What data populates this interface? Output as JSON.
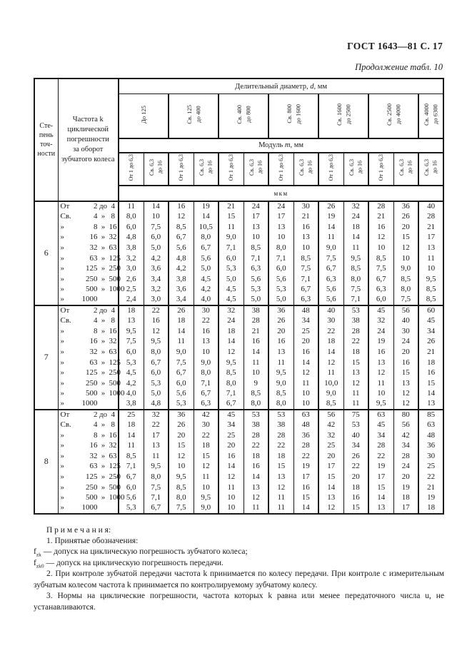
{
  "header": {
    "doc_ref": "ГОСТ 1643—81 С. 17",
    "continuation": "Продолжение табл. 10"
  },
  "table": {
    "degree_header": "Сте-\nпень\nточ-\nности",
    "frequency_header": "Частота k\nциклической\nпогрешности\nза оборот\nзубчатого колеса",
    "diameter_header": {
      "pre": "Делительный диаметр, ",
      "var": "d",
      "post": ", мм"
    },
    "module_header": {
      "pre": "Модуль ",
      "var": "m",
      "post": ", мм"
    },
    "unit_label": "мкм",
    "diameter_cols": [
      "До 125",
      "Св. 125\nдо 400",
      "Св. 400\nдо 800",
      "Св. 800\nдо 1600",
      "Св. 1600\nдо 2500",
      "Св. 2500\nдо 4000",
      "Св. 4000\nдо 6300"
    ],
    "module_cols": [
      "От 1 до 6,3",
      "Св. 6,3\nдо 16",
      "От 1 до 6,3",
      "Св. 6,3\nдо 16",
      "От 1 до 6,3",
      "Св. 6,3\nдо 16",
      "От 1 до 6,3",
      "Св. 6,3\nдо 16",
      "От 1 до 6,3",
      "Св. 6,3\nдо 16",
      "От 1 до 6,3",
      "Св. 6,3\nдо 16",
      "Св. 6,3\nдо 16"
    ],
    "row_labels": [
      [
        "От",
        "2",
        "до",
        "4"
      ],
      [
        "Св.",
        "4",
        "»",
        "8"
      ],
      [
        "»",
        "8",
        "»",
        "16"
      ],
      [
        "»",
        "16",
        "»",
        "32"
      ],
      [
        "»",
        "32",
        "»",
        "63"
      ],
      [
        "»",
        "63",
        "»",
        "125"
      ],
      [
        "»",
        "125",
        "»",
        "250"
      ],
      [
        "»",
        "250",
        "»",
        "500"
      ],
      [
        "»",
        "500",
        "»",
        "1000"
      ],
      [
        "»",
        "1000",
        "",
        ""
      ]
    ],
    "blocks": [
      {
        "degree": "6",
        "rows": [
          [
            "11",
            "14",
            "16",
            "19",
            "21",
            "24",
            "24",
            "30",
            "26",
            "32",
            "28",
            "36",
            "40"
          ],
          [
            "8,0",
            "10",
            "12",
            "14",
            "15",
            "17",
            "17",
            "21",
            "19",
            "24",
            "21",
            "26",
            "28"
          ],
          [
            "6,0",
            "7,5",
            "8,5",
            "10,5",
            "11",
            "13",
            "13",
            "16",
            "14",
            "18",
            "16",
            "20",
            "21"
          ],
          [
            "4,8",
            "6,0",
            "6,7",
            "8,0",
            "9,0",
            "10",
            "10",
            "13",
            "11",
            "14",
            "12",
            "15",
            "17"
          ],
          [
            "3,8",
            "5,0",
            "5,6",
            "6,7",
            "7,1",
            "8,5",
            "8,0",
            "10",
            "9,0",
            "11",
            "10",
            "12",
            "13"
          ],
          [
            "3,2",
            "4,2",
            "4,8",
            "5,6",
            "6,0",
            "7,1",
            "7,1",
            "8,5",
            "7,5",
            "9,5",
            "8,5",
            "10",
            "11"
          ],
          [
            "3,0",
            "3,6",
            "4,2",
            "5,0",
            "5,3",
            "6,3",
            "6,0",
            "7,5",
            "6,7",
            "8,5",
            "7,5",
            "9,0",
            "10"
          ],
          [
            "2,6",
            "3,4",
            "3,8",
            "4,5",
            "5,0",
            "5,6",
            "5,6",
            "7,1",
            "6,3",
            "8,0",
            "6,7",
            "8,5",
            "9,5"
          ],
          [
            "2,5",
            "3,2",
            "3,6",
            "4,2",
            "4,5",
            "5,3",
            "5,3",
            "6,7",
            "5,6",
            "7,5",
            "6,3",
            "8,0",
            "8,5"
          ],
          [
            "2,4",
            "3,0",
            "3,4",
            "4,0",
            "4,5",
            "5,0",
            "5,0",
            "6,3",
            "5,6",
            "7,1",
            "6,0",
            "7,5",
            "8,5"
          ]
        ]
      },
      {
        "degree": "7",
        "rows": [
          [
            "18",
            "22",
            "26",
            "30",
            "32",
            "38",
            "36",
            "48",
            "40",
            "53",
            "45",
            "56",
            "60"
          ],
          [
            "13",
            "16",
            "18",
            "22",
            "24",
            "28",
            "26",
            "34",
            "30",
            "38",
            "32",
            "40",
            "45"
          ],
          [
            "9,5",
            "12",
            "14",
            "16",
            "18",
            "21",
            "20",
            "25",
            "22",
            "28",
            "24",
            "30",
            "34"
          ],
          [
            "7,5",
            "9,5",
            "11",
            "13",
            "14",
            "16",
            "16",
            "20",
            "18",
            "22",
            "19",
            "24",
            "26"
          ],
          [
            "6,0",
            "8,0",
            "9,0",
            "10",
            "12",
            "14",
            "13",
            "16",
            "14",
            "18",
            "16",
            "20",
            "21"
          ],
          [
            "5,3",
            "6,7",
            "7,5",
            "9,0",
            "9,5",
            "11",
            "11",
            "14",
            "12",
            "15",
            "13",
            "16",
            "18"
          ],
          [
            "4,5",
            "6,0",
            "6,7",
            "8,0",
            "8,5",
            "10",
            "9,5",
            "12",
            "11",
            "13",
            "12",
            "15",
            "16"
          ],
          [
            "4,2",
            "5,3",
            "6,0",
            "7,1",
            "8,0",
            "9",
            "9,0",
            "11",
            "10,0",
            "12",
            "11",
            "13",
            "15"
          ],
          [
            "4,0",
            "5,0",
            "5,6",
            "6,7",
            "7,1",
            "8,5",
            "8,5",
            "10",
            "9,0",
            "11",
            "10",
            "12",
            "14"
          ],
          [
            "3,8",
            "4,8",
            "5,3",
            "6,3",
            "6,7",
            "8,0",
            "8,0",
            "10",
            "8,5",
            "11",
            "9,5",
            "12",
            "13"
          ]
        ]
      },
      {
        "degree": "8",
        "rows": [
          [
            "25",
            "32",
            "36",
            "42",
            "45",
            "53",
            "53",
            "63",
            "56",
            "75",
            "63",
            "80",
            "85"
          ],
          [
            "18",
            "22",
            "26",
            "30",
            "34",
            "38",
            "38",
            "48",
            "42",
            "53",
            "45",
            "56",
            "63"
          ],
          [
            "14",
            "17",
            "20",
            "22",
            "25",
            "28",
            "28",
            "36",
            "32",
            "40",
            "34",
            "42",
            "48"
          ],
          [
            "11",
            "13",
            "15",
            "18",
            "20",
            "22",
            "22",
            "28",
            "25",
            "34",
            "28",
            "34",
            "36"
          ],
          [
            "8,5",
            "11",
            "12",
            "15",
            "16",
            "18",
            "18",
            "22",
            "20",
            "26",
            "22",
            "28",
            "30"
          ],
          [
            "7,1",
            "9,5",
            "10",
            "12",
            "14",
            "16",
            "15",
            "19",
            "17",
            "22",
            "19",
            "24",
            "25"
          ],
          [
            "6,7",
            "8,0",
            "9,5",
            "11",
            "12",
            "14",
            "13",
            "17",
            "15",
            "20",
            "17",
            "20",
            "22"
          ],
          [
            "6,0",
            "7,5",
            "8,5",
            "10",
            "11",
            "13",
            "12",
            "16",
            "14",
            "18",
            "15",
            "19",
            "21"
          ],
          [
            "5,6",
            "7,1",
            "8,0",
            "9,5",
            "10",
            "12",
            "11",
            "15",
            "13",
            "16",
            "14",
            "18",
            "19"
          ],
          [
            "5,3",
            "6,7",
            "7,5",
            "9,0",
            "10",
            "11",
            "11",
            "14",
            "12",
            "15",
            "13",
            "17",
            "18"
          ]
        ]
      }
    ]
  },
  "notes": {
    "title": "П р и м е ч а н и я:",
    "item1": "1. Принятые обозначения:",
    "f1": {
      "sym": "f",
      "sub": "zk",
      "text": " — допуск на циклическую погрешность зубчатого колеса;"
    },
    "f2": {
      "sym": "f",
      "sub": "zk0",
      "text": " — допуск на циклическую погрешность передачи."
    },
    "item2": "2. При контроле зубчатой передачи частота k принимается по колесу передачи. При контроле с измерительным зубчатым колесом частота k принимается по контролируемому зубчатому колесу.",
    "item3": "3. Нормы на циклические погрешности, частота которых k равна или менее передаточного числа u, не устанавливаются."
  }
}
